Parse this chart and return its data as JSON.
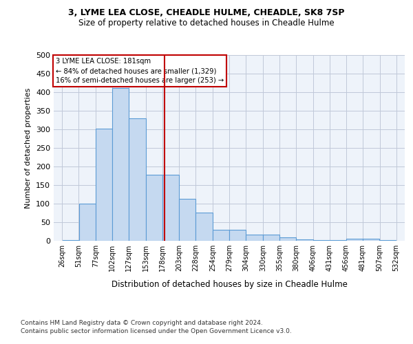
{
  "title1": "3, LYME LEA CLOSE, CHEADLE HULME, CHEADLE, SK8 7SP",
  "title2": "Size of property relative to detached houses in Cheadle Hulme",
  "xlabel": "Distribution of detached houses by size in Cheadle Hulme",
  "ylabel": "Number of detached properties",
  "bins": [
    26,
    51,
    77,
    102,
    127,
    153,
    178,
    203,
    228,
    254,
    279,
    304,
    330,
    355,
    380,
    406,
    431,
    456,
    481,
    507,
    532
  ],
  "bar_values": [
    2,
    100,
    302,
    412,
    330,
    178,
    178,
    113,
    76,
    30,
    30,
    16,
    16,
    10,
    4,
    2,
    2,
    5,
    5,
    2
  ],
  "bar_color": "#c5d9f0",
  "bar_edge_color": "#5b9bd5",
  "vline_x": 181,
  "vline_color": "#c00000",
  "annotation_line1": "3 LYME LEA CLOSE: 181sqm",
  "annotation_line2": "← 84% of detached houses are smaller (1,329)",
  "annotation_line3": "16% of semi-detached houses are larger (253) →",
  "annotation_box_color": "#ffffff",
  "annotation_box_edge_color": "#c00000",
  "ylim": [
    0,
    500
  ],
  "yticks": [
    0,
    50,
    100,
    150,
    200,
    250,
    300,
    350,
    400,
    450,
    500
  ],
  "footnote1": "Contains HM Land Registry data © Crown copyright and database right 2024.",
  "footnote2": "Contains public sector information licensed under the Open Government Licence v3.0.",
  "bg_color": "#eef3fa",
  "fig_bg_color": "#ffffff"
}
